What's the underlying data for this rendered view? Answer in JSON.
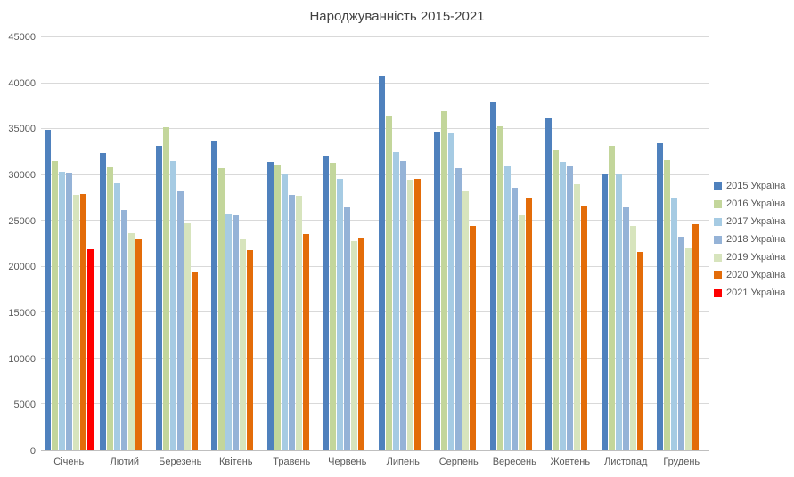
{
  "chart_data": {
    "type": "bar",
    "title": "Народжуванність 2015-2021",
    "categories": [
      "Січень",
      "Лютий",
      "Березень",
      "Квітень",
      "Травень",
      "Червень",
      "Липень",
      "Серпень",
      "Вересень",
      "Жовтень",
      "Листопад",
      "Грудень"
    ],
    "series": [
      {
        "name": "2015 Україна",
        "color": "#4F81BD",
        "values": [
          34900,
          32400,
          33200,
          33800,
          31400,
          32100,
          40800,
          34700,
          37900,
          36200,
          30100,
          33500
        ]
      },
      {
        "name": "2016 Україна",
        "color": "#C3D69B",
        "values": [
          31500,
          30800,
          35200,
          30700,
          31100,
          31300,
          36500,
          37000,
          35300,
          32700,
          33200,
          31600
        ]
      },
      {
        "name": "2017 Україна",
        "color": "#A6CBE3",
        "values": [
          30400,
          29100,
          31500,
          25800,
          30200,
          29600,
          32500,
          34500,
          31000,
          31400,
          30100,
          27500
        ]
      },
      {
        "name": "2018 Україна",
        "color": "#95B3D7",
        "values": [
          30300,
          26200,
          28200,
          25600,
          27800,
          26500,
          31500,
          30700,
          28600,
          30900,
          26500,
          23300
        ]
      },
      {
        "name": "2019 Україна",
        "color": "#D7E4BD",
        "values": [
          27800,
          23700,
          24700,
          23000,
          27700,
          22800,
          29500,
          28200,
          25600,
          29000,
          24400,
          22000
        ]
      },
      {
        "name": "2020 Україна",
        "color": "#E36C09",
        "values": [
          27900,
          23100,
          19400,
          21800,
          23600,
          23200,
          29600,
          24400,
          27500,
          26600,
          21600,
          24600
        ]
      },
      {
        "name": "2021 Україна",
        "color": "#FF0000",
        "values": [
          21900,
          null,
          null,
          null,
          null,
          null,
          null,
          null,
          null,
          null,
          null,
          null
        ]
      }
    ],
    "ylim": [
      0,
      45000
    ],
    "yticks": [
      0,
      5000,
      10000,
      15000,
      20000,
      25000,
      30000,
      35000,
      40000,
      45000
    ],
    "grid": true,
    "legend_position": "right"
  }
}
